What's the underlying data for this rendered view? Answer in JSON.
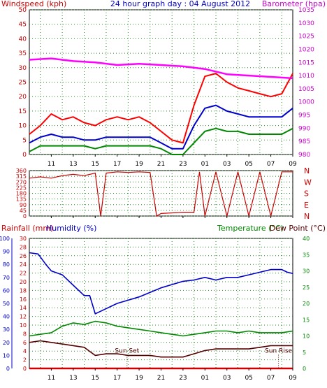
{
  "header": {
    "windspeed_label": "Windspeed (kph)",
    "graph_title": "24 hour graph day : 04 August 2012",
    "barometer_label": "Barometer (hpa)"
  },
  "lower_header": {
    "rainfall_label": "Rainfall (mm)",
    "humidity_label": "Humidity (%)",
    "temperature_label": "Temperature (°C)",
    "dewpoint_label": "Dew Point (°C)"
  },
  "colors": {
    "wind_avg": "#0000cc",
    "wind_gust": "#ff0000",
    "wind_low": "#008800",
    "barometer": "#ff00ff",
    "direction": "#cc0000",
    "humidity": "#0000cc",
    "temperature": "#008800",
    "dewpoint": "#550000",
    "rainfall": "#cc0000",
    "grid": "#2a8a2a",
    "frame": "#000000"
  },
  "chart_data": [
    {
      "type": "line",
      "title": "24 hour graph day : 04 August 2012",
      "xlabel": "",
      "ylabel": "Windspeed (kph)",
      "y2label": "Barometer (hpa)",
      "x_ticks": [
        "11",
        "13",
        "15",
        "17",
        "19",
        "21",
        "23",
        "01",
        "03",
        "05",
        "07",
        "09"
      ],
      "ylim": [
        0,
        50
      ],
      "y_ticks": [
        0,
        5,
        10,
        15,
        20,
        25,
        30,
        35,
        40,
        45,
        50
      ],
      "y2lim": [
        980,
        1035
      ],
      "y2_ticks": [
        980,
        985,
        990,
        995,
        1000,
        1005,
        1010,
        1015,
        1020,
        1025,
        1030,
        1035
      ],
      "x_hours": [
        9,
        11,
        13,
        15,
        17,
        19,
        21,
        23,
        25,
        27,
        29,
        31,
        33
      ],
      "series": [
        {
          "name": "gust",
          "axis": "left",
          "color": "#ff0000",
          "x": [
            9,
            10,
            11,
            12,
            13,
            14,
            15,
            16,
            17,
            18,
            19,
            20,
            21,
            22,
            23,
            24,
            25,
            26,
            27,
            28,
            29,
            30,
            31,
            32,
            33
          ],
          "values": [
            7,
            10,
            14,
            12,
            13,
            11,
            10,
            12,
            13,
            12,
            13,
            11,
            8,
            5,
            4,
            17,
            27,
            28,
            25,
            23,
            22,
            21,
            20,
            21,
            28
          ]
        },
        {
          "name": "average",
          "axis": "left",
          "color": "#0000cc",
          "x": [
            9,
            10,
            11,
            12,
            13,
            14,
            15,
            16,
            17,
            18,
            19,
            20,
            21,
            22,
            23,
            24,
            25,
            26,
            27,
            28,
            29,
            30,
            31,
            32,
            33
          ],
          "values": [
            4,
            6,
            7,
            6,
            6,
            5,
            5,
            6,
            6,
            6,
            6,
            6,
            4,
            2,
            2,
            10,
            16,
            17,
            15,
            14,
            13,
            13,
            13,
            13,
            16
          ]
        },
        {
          "name": "low",
          "axis": "left",
          "color": "#008800",
          "x": [
            9,
            10,
            11,
            12,
            13,
            14,
            15,
            16,
            17,
            18,
            19,
            20,
            21,
            22,
            23,
            24,
            25,
            26,
            27,
            28,
            29,
            30,
            31,
            32,
            33
          ],
          "values": [
            1,
            3,
            3,
            3,
            3,
            3,
            2,
            3,
            3,
            3,
            3,
            3,
            2,
            0,
            0,
            4,
            8,
            9,
            8,
            8,
            7,
            7,
            7,
            7,
            9
          ]
        },
        {
          "name": "barometer",
          "axis": "right",
          "color": "#ff00ff",
          "x": [
            9,
            11,
            13,
            15,
            17,
            19,
            21,
            23,
            25,
            27,
            29,
            31,
            33
          ],
          "values": [
            1016,
            1016.5,
            1015.5,
            1015,
            1014,
            1014.5,
            1014,
            1013.5,
            1012.5,
            1010.5,
            1010,
            1009.5,
            1009
          ]
        }
      ]
    },
    {
      "type": "line",
      "title": "",
      "ylabel": "",
      "ylim": [
        0,
        360
      ],
      "y_ticks": [
        0,
        45,
        90,
        135,
        180,
        225,
        270,
        315,
        360
      ],
      "y2_labels": [
        "N",
        "W",
        "S",
        "E",
        "N"
      ],
      "x_ticks": [
        "11",
        "13",
        "15",
        "17",
        "19",
        "21",
        "23",
        "01",
        "03",
        "05",
        "07",
        "09"
      ],
      "series": [
        {
          "name": "direction",
          "color": "#cc0000",
          "x": [
            9,
            10,
            11,
            12,
            13,
            14,
            15,
            15.5,
            16,
            17,
            18,
            19,
            20,
            20.6,
            21,
            22,
            23,
            24,
            24.5,
            25,
            26,
            27,
            28,
            29,
            30,
            31,
            32,
            33
          ],
          "values": [
            300,
            310,
            300,
            320,
            330,
            320,
            340,
            0,
            340,
            350,
            345,
            350,
            345,
            0,
            20,
            25,
            30,
            30,
            350,
            0,
            350,
            0,
            350,
            0,
            350,
            0,
            350,
            350
          ]
        }
      ]
    },
    {
      "type": "line",
      "title": "",
      "ylabel": "Rainfall (mm)  Humidity (%)",
      "y2label": "Temperature (°C)Dew Point (°C)",
      "x_ticks": [
        "11",
        "13",
        "15",
        "17",
        "19",
        "21",
        "23",
        "01",
        "03",
        "05",
        "07",
        "09"
      ],
      "rain_ticks": [
        0,
        2,
        4,
        6,
        8,
        10,
        12,
        14,
        16,
        18,
        20,
        22,
        24,
        26,
        28,
        30
      ],
      "humidity_ticks": [
        0,
        10,
        20,
        30,
        40,
        50,
        60,
        70,
        80,
        90,
        100
      ],
      "temp_ticks": [
        0,
        5,
        10,
        15,
        20,
        25,
        30,
        35,
        40
      ],
      "ylim_humidity": [
        0,
        100
      ],
      "ylim_temp": [
        0,
        40
      ],
      "annotations": [
        {
          "text": "Sun Set",
          "x": 17.9
        },
        {
          "text": "Sun Rise",
          "x": 31.7
        }
      ],
      "series": [
        {
          "name": "humidity",
          "axis": "humidity",
          "color": "#0000cc",
          "x": [
            9,
            9.8,
            10.5,
            11,
            12,
            13,
            14,
            14.5,
            15,
            15.5,
            17,
            19,
            21,
            23,
            24,
            25,
            26,
            27,
            28,
            29,
            30,
            31,
            32,
            32.5,
            33
          ],
          "values": [
            89,
            88,
            80,
            75,
            72,
            64,
            56,
            56,
            42,
            44,
            50,
            55,
            62,
            67,
            68,
            70,
            68,
            70,
            70,
            72,
            74,
            76,
            76,
            74,
            73
          ]
        },
        {
          "name": "temperature",
          "axis": "temp",
          "color": "#008800",
          "x": [
            9,
            10,
            11,
            12,
            13,
            14,
            15,
            16,
            17,
            18,
            19,
            20,
            21,
            22,
            23,
            24,
            25,
            26,
            27,
            28,
            29,
            30,
            31,
            32,
            33
          ],
          "values": [
            10,
            10.5,
            11,
            13,
            14,
            13.5,
            14.5,
            14,
            13,
            12.5,
            12,
            11.5,
            11,
            10.5,
            10,
            10.5,
            11,
            11.5,
            11.5,
            11,
            11.5,
            11,
            11,
            11,
            11.5
          ]
        },
        {
          "name": "dew point",
          "axis": "temp",
          "color": "#550000",
          "x": [
            9,
            10,
            11,
            12,
            13,
            14,
            15,
            16,
            17,
            18,
            19,
            20,
            21,
            22,
            23,
            24,
            25,
            26,
            27,
            28,
            29,
            30,
            31,
            32,
            33
          ],
          "values": [
            8,
            8.5,
            8,
            7.5,
            7,
            6.5,
            4,
            4.5,
            4.5,
            4,
            4,
            4,
            3.5,
            3.5,
            3.5,
            4.5,
            5.5,
            6,
            6,
            6,
            6,
            6.5,
            7,
            7,
            7
          ]
        },
        {
          "name": "rainfall",
          "axis": "rain",
          "color": "#cc0000",
          "x": [
            9,
            33
          ],
          "values": [
            0,
            0
          ]
        }
      ]
    }
  ]
}
